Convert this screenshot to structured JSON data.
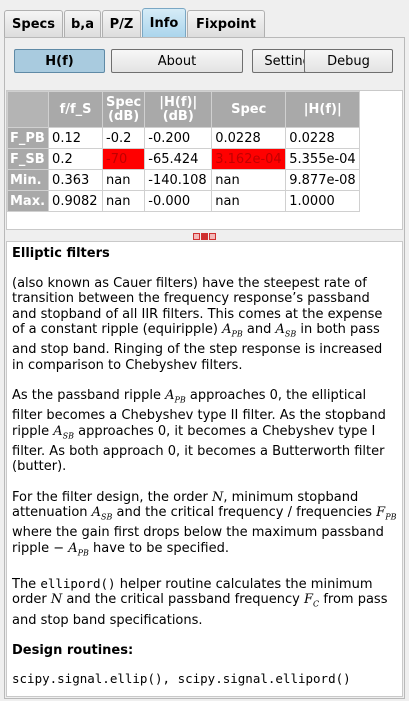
{
  "tabs": [
    {
      "label": "Specs"
    },
    {
      "label": "b,a"
    },
    {
      "label": "P/Z"
    },
    {
      "label": "Info"
    },
    {
      "label": "Fixpoint"
    }
  ],
  "buttons": {
    "hf": "H(f)",
    "about": "About",
    "settings": "Settings",
    "debug": "Debug"
  },
  "table": {
    "headers": [
      "f/f_S",
      "Spec (dB)",
      "|H(f)| (dB)",
      "Spec",
      "|H(f)|"
    ],
    "rows": [
      {
        "label": "F_PB",
        "cells": [
          "0.12",
          "-0.2",
          "-0.200",
          "0.0228",
          "0.0228"
        ]
      },
      {
        "label": "F_SB",
        "cells": [
          "0.2",
          "-70",
          "-65.424",
          "3.162e-04",
          "5.355e-04"
        ]
      },
      {
        "label": "Min.",
        "cells": [
          "0.363",
          "nan",
          "-140.108",
          "nan",
          "9.877e-08"
        ]
      },
      {
        "label": "Max.",
        "cells": [
          "0.9082",
          "nan",
          "-0.000",
          "nan",
          "1.0000"
        ]
      }
    ]
  },
  "info": {
    "title": "Elliptic filters",
    "p1": "(also known as Cauer filters) have the steepest rate of transition between the frequency response’s passband and stopband of all IIR filters. This comes at the expense of a constant ripple (equiripple)",
    "p1b": "and",
    "p1c": "in both pass and stop band. Ringing of the step response is increased in comparison to Chebyshev filters.",
    "p2a": "As the passband ripple",
    "p2b": "approaches 0, the elliptical filter becomes a Chebyshev type II filter. As the stopband ripple",
    "p2c": "approaches 0, it becomes a Chebyshev type I filter. As both approach 0, it becomes a Butterworth filter (butter).",
    "p3a": "For the filter design, the order",
    "p3b": ", minimum stopband attenuation",
    "p3c": "and the critical frequency / frequencies",
    "p3d": "where the gain first drops below the maximum passband ripple −",
    "p3e": "have to be specified.",
    "p4a": "The",
    "p4code": "ellipord()",
    "p4b": "helper routine calculates the minimum order",
    "p4c": "and the critical passband frequency",
    "p4d": "from pass and stop band specifications.",
    "design_title": "Design routines:",
    "routines": "scipy.signal.ellip(), scipy.signal.ellipord()",
    "sym_A": "A",
    "sym_F": "F",
    "sym_N": "N",
    "sub_PB": "PB",
    "sub_SB": "SB",
    "sub_C": "C"
  },
  "colors": {
    "active_tab": "#a9d4ec",
    "active_button": "#a9cbdf",
    "header_gray": "#a9a9a9",
    "highlight_red": "#ff0000"
  }
}
